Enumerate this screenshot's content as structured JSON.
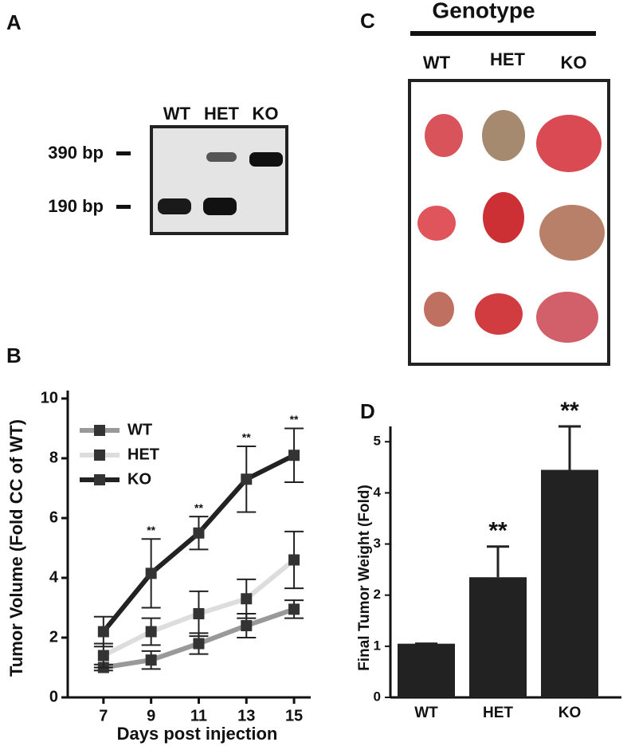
{
  "panel_labels": [
    "A",
    "B",
    "C",
    "D"
  ],
  "gel": {
    "lanes": [
      "WT",
      "HET",
      "KO"
    ],
    "markers": [
      "390 bp",
      "190 bp"
    ]
  },
  "photo": {
    "title": "Genotype",
    "columns": [
      "WT",
      "HET",
      "KO"
    ]
  },
  "chart_data": [
    {
      "type": "line",
      "x_label": "Days post injection",
      "y_label": "Tumor Volume (Fold CC of WT)",
      "x": [
        7,
        9,
        11,
        13,
        15
      ],
      "xlim": [
        5.5,
        15.7
      ],
      "xticks": [
        7,
        9,
        11,
        13,
        15
      ],
      "ylim": [
        0,
        10
      ],
      "yticks": [
        0,
        2,
        4,
        6,
        8,
        10
      ],
      "legend": "upper-left",
      "series": [
        {
          "name": "WT",
          "color": "#999999",
          "values": [
            1.0,
            1.25,
            1.8,
            2.4,
            2.95
          ],
          "errors": [
            0.1,
            0.3,
            0.35,
            0.4,
            0.3
          ]
        },
        {
          "name": "HET",
          "color": "#dddddd",
          "values": [
            1.4,
            2.2,
            2.8,
            3.3,
            4.6
          ],
          "errors": [
            0.4,
            0.45,
            0.75,
            0.65,
            0.95
          ]
        },
        {
          "name": "KO",
          "color": "#222222",
          "values": [
            2.2,
            4.15,
            5.5,
            7.3,
            8.1
          ],
          "errors": [
            0.5,
            1.15,
            0.55,
            1.1,
            0.9
          ]
        }
      ],
      "significance": [
        null,
        "**",
        "**",
        "**",
        "**"
      ]
    },
    {
      "type": "bar",
      "y_label": "Final Tumor Weight (Fold)",
      "categories": [
        "WT",
        "HET",
        "KO"
      ],
      "values": [
        1.05,
        2.35,
        4.45
      ],
      "errors": [
        0,
        0.6,
        0.85
      ],
      "color": "#222222",
      "ylim": [
        0,
        5.3
      ],
      "yticks": [
        0,
        1,
        2,
        3,
        4,
        5
      ],
      "significance": [
        null,
        "**",
        "**"
      ]
    }
  ]
}
